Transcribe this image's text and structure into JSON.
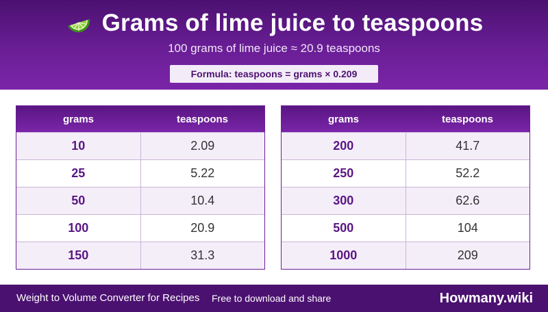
{
  "header": {
    "icon": "lime-slice-icon",
    "title": "Grams of lime juice to teaspoons",
    "subtitle": "100 grams of lime juice ≈ 20.9 teaspoons",
    "formula": "Formula: teaspoons = grams × 0.209"
  },
  "tables": {
    "headers": {
      "grams": "grams",
      "teaspoons": "teaspoons"
    },
    "left": [
      {
        "grams": "10",
        "teaspoons": "2.09"
      },
      {
        "grams": "25",
        "teaspoons": "5.22"
      },
      {
        "grams": "50",
        "teaspoons": "10.4"
      },
      {
        "grams": "100",
        "teaspoons": "20.9"
      },
      {
        "grams": "150",
        "teaspoons": "31.3"
      }
    ],
    "right": [
      {
        "grams": "200",
        "teaspoons": "41.7"
      },
      {
        "grams": "250",
        "teaspoons": "52.2"
      },
      {
        "grams": "300",
        "teaspoons": "62.6"
      },
      {
        "grams": "500",
        "teaspoons": "104"
      },
      {
        "grams": "1000",
        "teaspoons": "209"
      }
    ]
  },
  "footer": {
    "left_text": "Weight to Volume Converter for Recipes",
    "mid_text": "Free to download and share",
    "brand": "Howmany.wiki"
  },
  "colors": {
    "header_purple": "#6a1e96",
    "dark_purple": "#4b1170",
    "row_tint": "#f4eef9"
  }
}
